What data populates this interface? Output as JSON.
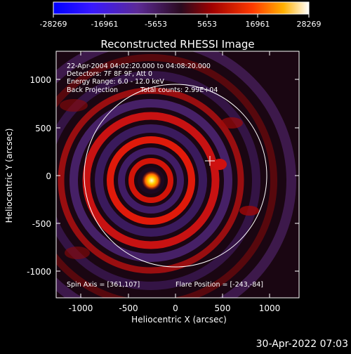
{
  "colorbar": {
    "ticks": [
      "-28269",
      "-16961",
      "-5653",
      "5653",
      "16961",
      "28269"
    ]
  },
  "plot": {
    "title": "Reconstructed RHESSI Image",
    "xlabel": "Heliocentric X (arcsec)",
    "ylabel": "Heliocentric Y (arcsec)",
    "x_ticks": [
      "-1000",
      "-500",
      "0",
      "500",
      "1000"
    ],
    "y_ticks": [
      "1000",
      "500",
      "0",
      "-500",
      "-1000"
    ],
    "xlim": [
      -1290,
      1290
    ],
    "ylim": [
      -1290,
      1290
    ]
  },
  "annotation": {
    "line1": "22-Apr-2004 04:02:20.000 to 04:08:20.000",
    "line2": "Detectors: 7F 8F 9F, Att 0",
    "line3": "Energy Range: 6.0 - 12.0 keV",
    "line4_left": "Back Projection",
    "line4_right": "Total counts: 2.99E+04",
    "spin_axis": "Spin Axis = [361,107]",
    "flare_position": "Flare Position = [-243,-84]"
  },
  "footer": {
    "timestamp": "30-Apr-2022 07:03"
  },
  "chart_data": {
    "type": "heatmap",
    "title": "Reconstructed RHESSI Image",
    "xlabel": "Heliocentric X (arcsec)",
    "ylabel": "Heliocentric Y (arcsec)",
    "x_range": [
      -1290,
      1290
    ],
    "y_range": [
      -1290,
      1290
    ],
    "colorbar_range": [
      -28269,
      28269
    ],
    "source_position": [
      -243,
      -84
    ],
    "spin_axis": [
      361,
      107
    ],
    "solar_limb_radius_arcsec": 950,
    "grid": false
  }
}
